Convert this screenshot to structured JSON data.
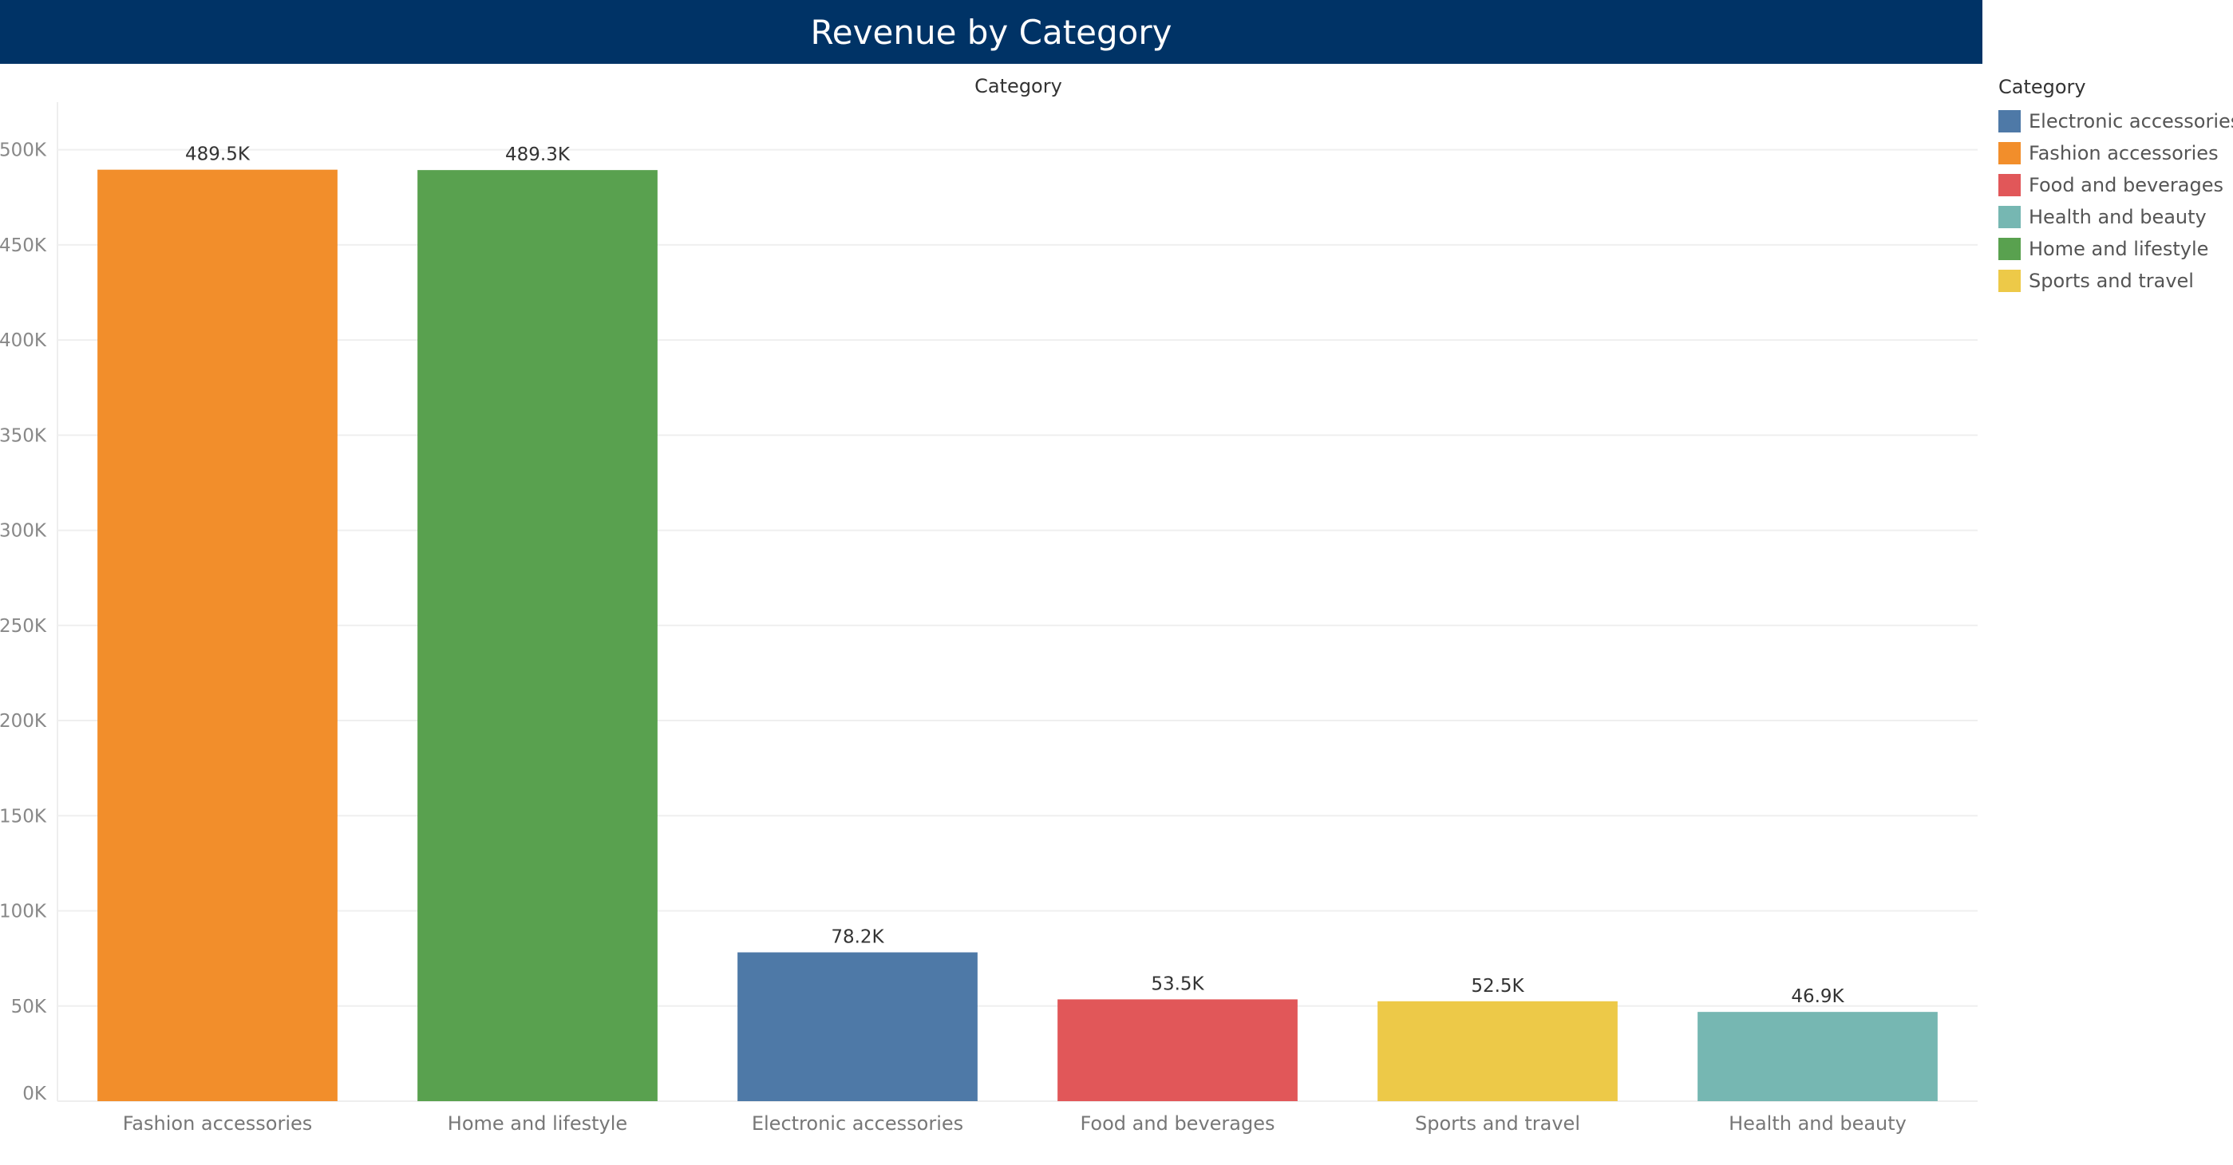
{
  "title": "Revenue by Category",
  "chart_data": {
    "type": "bar",
    "title": "Revenue by Category",
    "column_header": "Category",
    "xlabel": "",
    "ylabel": "",
    "categories": [
      "Fashion accessories",
      "Home and lifestyle",
      "Electronic accessories",
      "Food and beverages",
      "Sports and travel",
      "Health and beauty"
    ],
    "values": [
      489500,
      489300,
      78200,
      53500,
      52500,
      46900
    ],
    "value_labels": [
      "489.5K",
      "489.3K",
      "78.2K",
      "53.5K",
      "52.5K",
      "46.9K"
    ],
    "colors": [
      "#F28E2B",
      "#59A14F",
      "#4E79A7",
      "#E15759",
      "#EDC948",
      "#76B7B2"
    ],
    "ylim": [
      0,
      525000
    ],
    "yticks": [
      0,
      50000,
      100000,
      150000,
      200000,
      250000,
      300000,
      350000,
      400000,
      450000,
      500000
    ],
    "ytick_labels": [
      "0K",
      "50K",
      "100K",
      "150K",
      "200K",
      "250K",
      "300K",
      "350K",
      "400K",
      "450K",
      "500K"
    ],
    "grid": true,
    "legend_position": "right"
  },
  "legend": {
    "title": "Category",
    "items": [
      {
        "label": "Electronic accessories",
        "color": "#4E79A7"
      },
      {
        "label": "Fashion accessories",
        "color": "#F28E2B"
      },
      {
        "label": "Food and beverages",
        "color": "#E15759"
      },
      {
        "label": "Health and beauty",
        "color": "#76B7B2"
      },
      {
        "label": "Home and lifestyle",
        "color": "#59A14F"
      },
      {
        "label": "Sports and travel",
        "color": "#EDC948"
      }
    ]
  }
}
